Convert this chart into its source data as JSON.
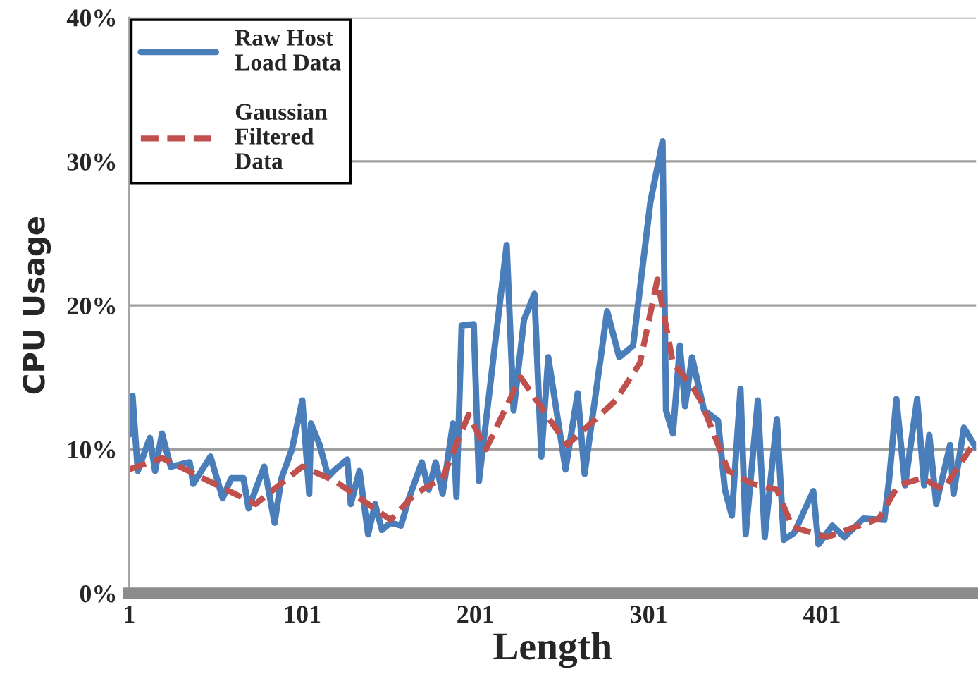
{
  "chart_data": {
    "type": "line",
    "xlabel": "Length",
    "ylabel": "CPU Usage",
    "xlim": [
      1,
      490
    ],
    "xticks": [
      1,
      101,
      201,
      301,
      401
    ],
    "ylim": [
      0,
      40
    ],
    "yticks": [
      {
        "value": 0,
        "label": "0%"
      },
      {
        "value": 10,
        "label": "10%"
      },
      {
        "value": 20,
        "label": "20%"
      },
      {
        "value": 30,
        "label": "30%"
      },
      {
        "value": 40,
        "label": "40%"
      }
    ],
    "grid": "y",
    "legend": "top left",
    "series": [
      {
        "name": "Raw Host Load Data",
        "color": "#4a7ebb",
        "line_style": "solid",
        "x": [
          1,
          3,
          6,
          13,
          16,
          20,
          25,
          36,
          38,
          48,
          55,
          60,
          67,
          70,
          79,
          85,
          89,
          95,
          101,
          105,
          106,
          111,
          116,
          120,
          127,
          129,
          134,
          139,
          143,
          147,
          152,
          158,
          162,
          170,
          174,
          178,
          182,
          188,
          190,
          193,
          200,
          203,
          219,
          223,
          229,
          235,
          239,
          243,
          253,
          260,
          264,
          277,
          284,
          292,
          302,
          309,
          311,
          315,
          319,
          322,
          326,
          333,
          341,
          345,
          349,
          354,
          357,
          364,
          368,
          375,
          379,
          385,
          396,
          399,
          407,
          414,
          425,
          437,
          440,
          444,
          449,
          456,
          460,
          463,
          467,
          475,
          477,
          483,
          490
        ],
        "values": [
          11,
          13.7,
          8.5,
          10.8,
          8.5,
          11.1,
          8.8,
          9.1,
          7.6,
          9.5,
          6.6,
          8.0,
          8.0,
          5.9,
          8.8,
          4.9,
          8.0,
          10,
          13.4,
          6.9,
          11.8,
          10.3,
          8.1,
          8.6,
          9.3,
          6.2,
          8.5,
          4.1,
          6.2,
          4.4,
          4.9,
          4.7,
          6.4,
          9.1,
          7.2,
          9.1,
          6.9,
          11.8,
          6.7,
          18.6,
          18.7,
          7.8,
          24.2,
          12.7,
          19,
          20.8,
          9.5,
          16.4,
          8.6,
          13.9,
          8.3,
          19.6,
          16.4,
          17.2,
          27.2,
          31.4,
          12.7,
          11.1,
          17.2,
          13,
          16.4,
          12.7,
          12,
          7.2,
          5.4,
          14.2,
          4.1,
          13.4,
          3.9,
          12.1,
          3.7,
          4.2,
          7.1,
          3.4,
          4.7,
          3.9,
          5.2,
          5.1,
          8.1,
          13.5,
          7.5,
          13.5,
          7.5,
          11,
          6.2,
          10.3,
          6.9,
          11.5,
          10.1
        ]
      },
      {
        "name": "Gaussian Filtered Data",
        "color": "#c0504d",
        "line_style": "dashed",
        "x": [
          1,
          20,
          74,
          101,
          120,
          152,
          166,
          182,
          197,
          207,
          227,
          254,
          282,
          296,
          306,
          315,
          327,
          331,
          347,
          361,
          375,
          384,
          404,
          434,
          445,
          459,
          471,
          487
        ],
        "values": [
          8.6,
          9.4,
          6.2,
          8.8,
          7.8,
          5.1,
          6.9,
          8.0,
          12.4,
          10,
          15,
          10.3,
          13.4,
          16,
          21.8,
          16,
          14.2,
          13.4,
          8.5,
          7.6,
          7.2,
          4.6,
          3.9,
          5.2,
          7.5,
          8.0,
          7.2,
          10.1
        ]
      }
    ]
  }
}
